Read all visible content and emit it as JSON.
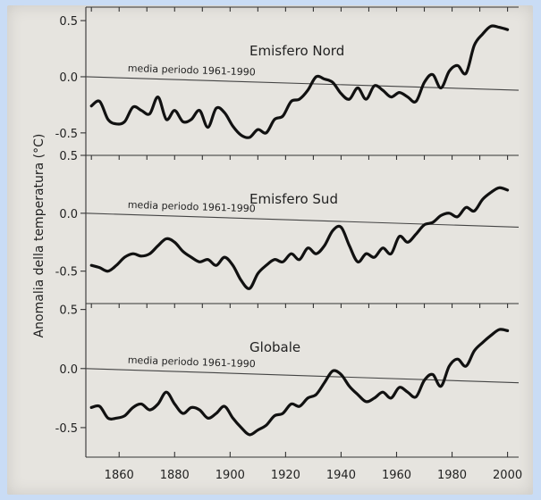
{
  "chart_data": {
    "type": "line",
    "ylabel": "Anomalia della temperatura (°C)",
    "x_ticks": [
      1860,
      1880,
      1900,
      1920,
      1940,
      1960,
      1980,
      2000
    ],
    "xlim": [
      1848,
      2004
    ],
    "reference_label": "media periodo 1961-1990",
    "panels": [
      {
        "title": "Emisfero Nord",
        "ylim": [
          -0.7,
          0.62
        ],
        "y_ticks": [
          0.5,
          0.0,
          -0.5
        ],
        "y_tick_labels": [
          "0.5",
          "0.0",
          "-0.5"
        ],
        "reference_y": [
          0.0,
          -0.12
        ],
        "series": [
          {
            "x": [
              1850,
              1853,
              1856,
              1859,
              1862,
              1865,
              1868,
              1871,
              1874,
              1877,
              1880,
              1883,
              1886,
              1889,
              1892,
              1895,
              1898,
              1901,
              1904,
              1907,
              1910,
              1913,
              1916,
              1919,
              1922,
              1925,
              1928,
              1931,
              1934,
              1937,
              1940,
              1943,
              1946,
              1949,
              1952,
              1955,
              1958,
              1961,
              1964,
              1967,
              1970,
              1973,
              1976,
              1979,
              1982,
              1985,
              1988,
              1991,
              1994,
              1997,
              2000
            ],
            "y": [
              -0.26,
              -0.22,
              -0.38,
              -0.42,
              -0.4,
              -0.27,
              -0.3,
              -0.33,
              -0.18,
              -0.38,
              -0.3,
              -0.4,
              -0.38,
              -0.3,
              -0.45,
              -0.28,
              -0.32,
              -0.44,
              -0.52,
              -0.54,
              -0.47,
              -0.5,
              -0.38,
              -0.35,
              -0.22,
              -0.2,
              -0.12,
              0.0,
              -0.02,
              -0.05,
              -0.15,
              -0.2,
              -0.1,
              -0.2,
              -0.08,
              -0.12,
              -0.18,
              -0.14,
              -0.18,
              -0.22,
              -0.05,
              0.02,
              -0.1,
              0.05,
              0.1,
              0.03,
              0.28,
              0.38,
              0.45,
              0.44,
              0.42
            ]
          }
        ]
      },
      {
        "title": "Emisfero Sud",
        "ylim": [
          -0.78,
          0.5
        ],
        "y_ticks": [
          0.5,
          0.0,
          -0.5
        ],
        "y_tick_labels": [
          "0.5",
          "0.0",
          "-0.5"
        ],
        "reference_y": [
          0.0,
          -0.12
        ],
        "series": [
          {
            "x": [
              1850,
              1853,
              1856,
              1859,
              1862,
              1865,
              1868,
              1871,
              1874,
              1877,
              1880,
              1883,
              1886,
              1889,
              1892,
              1895,
              1898,
              1901,
              1904,
              1907,
              1910,
              1913,
              1916,
              1919,
              1922,
              1925,
              1928,
              1931,
              1934,
              1937,
              1940,
              1943,
              1946,
              1949,
              1952,
              1955,
              1958,
              1961,
              1964,
              1967,
              1970,
              1973,
              1976,
              1979,
              1982,
              1985,
              1988,
              1991,
              1994,
              1997,
              2000
            ],
            "y": [
              -0.45,
              -0.47,
              -0.5,
              -0.45,
              -0.38,
              -0.35,
              -0.37,
              -0.35,
              -0.28,
              -0.22,
              -0.25,
              -0.33,
              -0.38,
              -0.42,
              -0.4,
              -0.45,
              -0.38,
              -0.45,
              -0.58,
              -0.65,
              -0.52,
              -0.45,
              -0.4,
              -0.42,
              -0.35,
              -0.4,
              -0.3,
              -0.35,
              -0.28,
              -0.15,
              -0.12,
              -0.28,
              -0.42,
              -0.35,
              -0.38,
              -0.3,
              -0.35,
              -0.2,
              -0.25,
              -0.18,
              -0.1,
              -0.08,
              -0.02,
              0.0,
              -0.03,
              0.05,
              0.02,
              0.12,
              0.18,
              0.22,
              0.2
            ]
          }
        ]
      },
      {
        "title": "Globale",
        "ylim": [
          -0.75,
          0.55
        ],
        "y_ticks": [
          0.5,
          0.0,
          -0.5
        ],
        "y_tick_labels": [
          "0.5",
          "0.0",
          "-0.5"
        ],
        "reference_y": [
          0.0,
          -0.12
        ],
        "series": [
          {
            "x": [
              1850,
              1853,
              1856,
              1859,
              1862,
              1865,
              1868,
              1871,
              1874,
              1877,
              1880,
              1883,
              1886,
              1889,
              1892,
              1895,
              1898,
              1901,
              1904,
              1907,
              1910,
              1913,
              1916,
              1919,
              1922,
              1925,
              1928,
              1931,
              1934,
              1937,
              1940,
              1943,
              1946,
              1949,
              1952,
              1955,
              1958,
              1961,
              1964,
              1967,
              1970,
              1973,
              1976,
              1979,
              1982,
              1985,
              1988,
              1991,
              1994,
              1997,
              2000
            ],
            "y": [
              -0.33,
              -0.32,
              -0.42,
              -0.42,
              -0.4,
              -0.33,
              -0.3,
              -0.35,
              -0.3,
              -0.2,
              -0.3,
              -0.38,
              -0.33,
              -0.35,
              -0.42,
              -0.38,
              -0.32,
              -0.42,
              -0.5,
              -0.56,
              -0.52,
              -0.48,
              -0.4,
              -0.38,
              -0.3,
              -0.32,
              -0.25,
              -0.22,
              -0.12,
              -0.02,
              -0.05,
              -0.15,
              -0.22,
              -0.28,
              -0.25,
              -0.2,
              -0.25,
              -0.16,
              -0.2,
              -0.24,
              -0.1,
              -0.05,
              -0.15,
              0.02,
              0.08,
              0.02,
              0.15,
              0.22,
              0.28,
              0.33,
              0.32
            ]
          }
        ]
      }
    ]
  }
}
